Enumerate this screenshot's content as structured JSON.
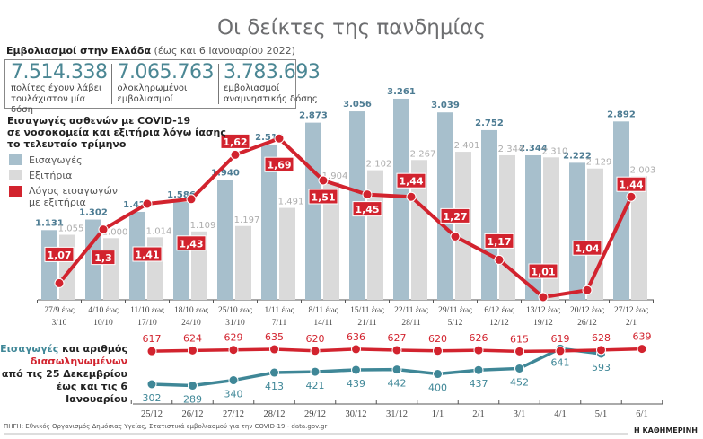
{
  "title": "Οι δείκτες της πανδημίας",
  "vaccinations": {
    "heading": "Εμβολιασμοί στην Ελλάδα",
    "note": "(έως και 6 Ιανουαρίου 2022)",
    "stats": [
      {
        "value": "7.514.338",
        "line1": "πολίτες έχουν λάβει",
        "line2": "τουλάχιστον μία δόση"
      },
      {
        "value": "7.065.763",
        "line1": "ολοκληρωμένοι",
        "line2": "εμβολιασμοί"
      },
      {
        "value": "3.783.693",
        "line1": "εμβολιασμοί",
        "line2": "αναμνηστικής δόσης"
      }
    ]
  },
  "legend_bottom": {
    "part1": "Εισαγωγές",
    "part2": " και αριθμός",
    "line2": "διασωληνωμένων",
    "line3": "από τις 25 Δεκεμβρίου",
    "line4": "έως και τις 6 Ιανουαρίου"
  },
  "source": "ΠΗΓΗ: Εθνικός Οργανισμός Δημόσιας Υγείας, Στατιστικά εμβολιασμού για την COVID-19 - data.gov.gr",
  "brand": "Η ΚΑΘΗΜΕΡΙΝΗ",
  "colors": {
    "admissions": "#a7bfcc",
    "exits": "#dadada",
    "ratio": "#d2232e",
    "teal": "#3f8797",
    "intubated": "#d2232e"
  },
  "chart_data": [
    {
      "type": "bar",
      "title": "Εισαγωγές ασθενών με COVID-19 σε νοσοκομεία και εξιτήρια λόγω ίασης το τελευταίο τρίμηνο",
      "title_lines": [
        "Εισαγωγές ασθενών με COVID-19",
        "σε νοσοκομεία και εξιτήρια λόγω ίασης",
        "το τελευταίο τρίμηνο"
      ],
      "categories": [
        [
          "27/9 έως",
          "3/10"
        ],
        [
          "4/10 έως",
          "10/10"
        ],
        [
          "11/10 έως",
          "17/10"
        ],
        [
          "18/10 έως",
          "24/10"
        ],
        [
          "25/10 έως",
          "31/10"
        ],
        [
          "1/11 έως",
          "7/11"
        ],
        [
          "8/11 έως",
          "14/11"
        ],
        [
          "15/11 έως",
          "21/11"
        ],
        [
          "22/11 έως",
          "28/11"
        ],
        [
          "29/11 έως",
          "5/12"
        ],
        [
          "6/12 έως",
          "12/12"
        ],
        [
          "13/12 έως",
          "19/12"
        ],
        [
          "20/12 έως",
          "26/12"
        ],
        [
          "27/12 έως",
          "2/1"
        ]
      ],
      "series": [
        {
          "name": "Εισαγωγές",
          "kind": "bar",
          "values": [
            1131,
            1302,
            1427,
            1586,
            1940,
            2519,
            2873,
            3056,
            3261,
            3039,
            2752,
            2344,
            2222,
            2892
          ],
          "labels": [
            "1.131",
            "1.302",
            "1.427",
            "1.586",
            "1.940",
            "2.519",
            "2.873",
            "3.056",
            "3.261",
            "3.039",
            "2.752",
            "2.344",
            "2.222",
            "2.892"
          ]
        },
        {
          "name": "Εξιτήρια",
          "kind": "bar",
          "values": [
            1055,
            1000,
            1014,
            1109,
            1197,
            1491,
            1904,
            2102,
            2267,
            2401,
            2344,
            2310,
            2129,
            2003
          ],
          "labels": [
            "1.055",
            "1.000",
            "1.014",
            "1.109",
            "1.197",
            "1.491",
            "1.904",
            "2.102",
            "2.267",
            "2.401",
            "2.344",
            "2.310",
            "2.129",
            "2.003"
          ]
        },
        {
          "name": "Λόγος εισαγωγών με εξιτήρια",
          "name_lines": [
            "Λόγος εισαγωγών",
            "με εξιτήρια"
          ],
          "kind": "line",
          "values": [
            1.07,
            1.3,
            1.41,
            1.43,
            1.62,
            1.69,
            1.51,
            1.45,
            1.44,
            1.27,
            1.17,
            1.01,
            1.04,
            1.44
          ],
          "labels": [
            "1,07",
            "1,3",
            "1,41",
            "1,43",
            "1,62",
            "1,69",
            "1,51",
            "1,45",
            "1,44",
            "1,27",
            "1,17",
            "1,01",
            "1,04",
            "1,44"
          ]
        }
      ],
      "ylim": [
        0,
        3300
      ],
      "grid": false,
      "legend": "top-left"
    },
    {
      "type": "line",
      "categories": [
        "25/12",
        "26/12",
        "27/12",
        "28/12",
        "29/12",
        "30/12",
        "31/12",
        "1/1",
        "2/1",
        "3/1",
        "4/1",
        "5/1",
        "6/1"
      ],
      "series": [
        {
          "name": "Εισαγωγές",
          "values": [
            302,
            289,
            340,
            413,
            421,
            439,
            442,
            400,
            437,
            452,
            641,
            593,
            null
          ]
        },
        {
          "name": "διασωληνωμένων",
          "values": [
            617,
            624,
            629,
            635,
            620,
            636,
            627,
            620,
            626,
            615,
            619,
            628,
            639
          ]
        }
      ],
      "grid": false
    }
  ]
}
